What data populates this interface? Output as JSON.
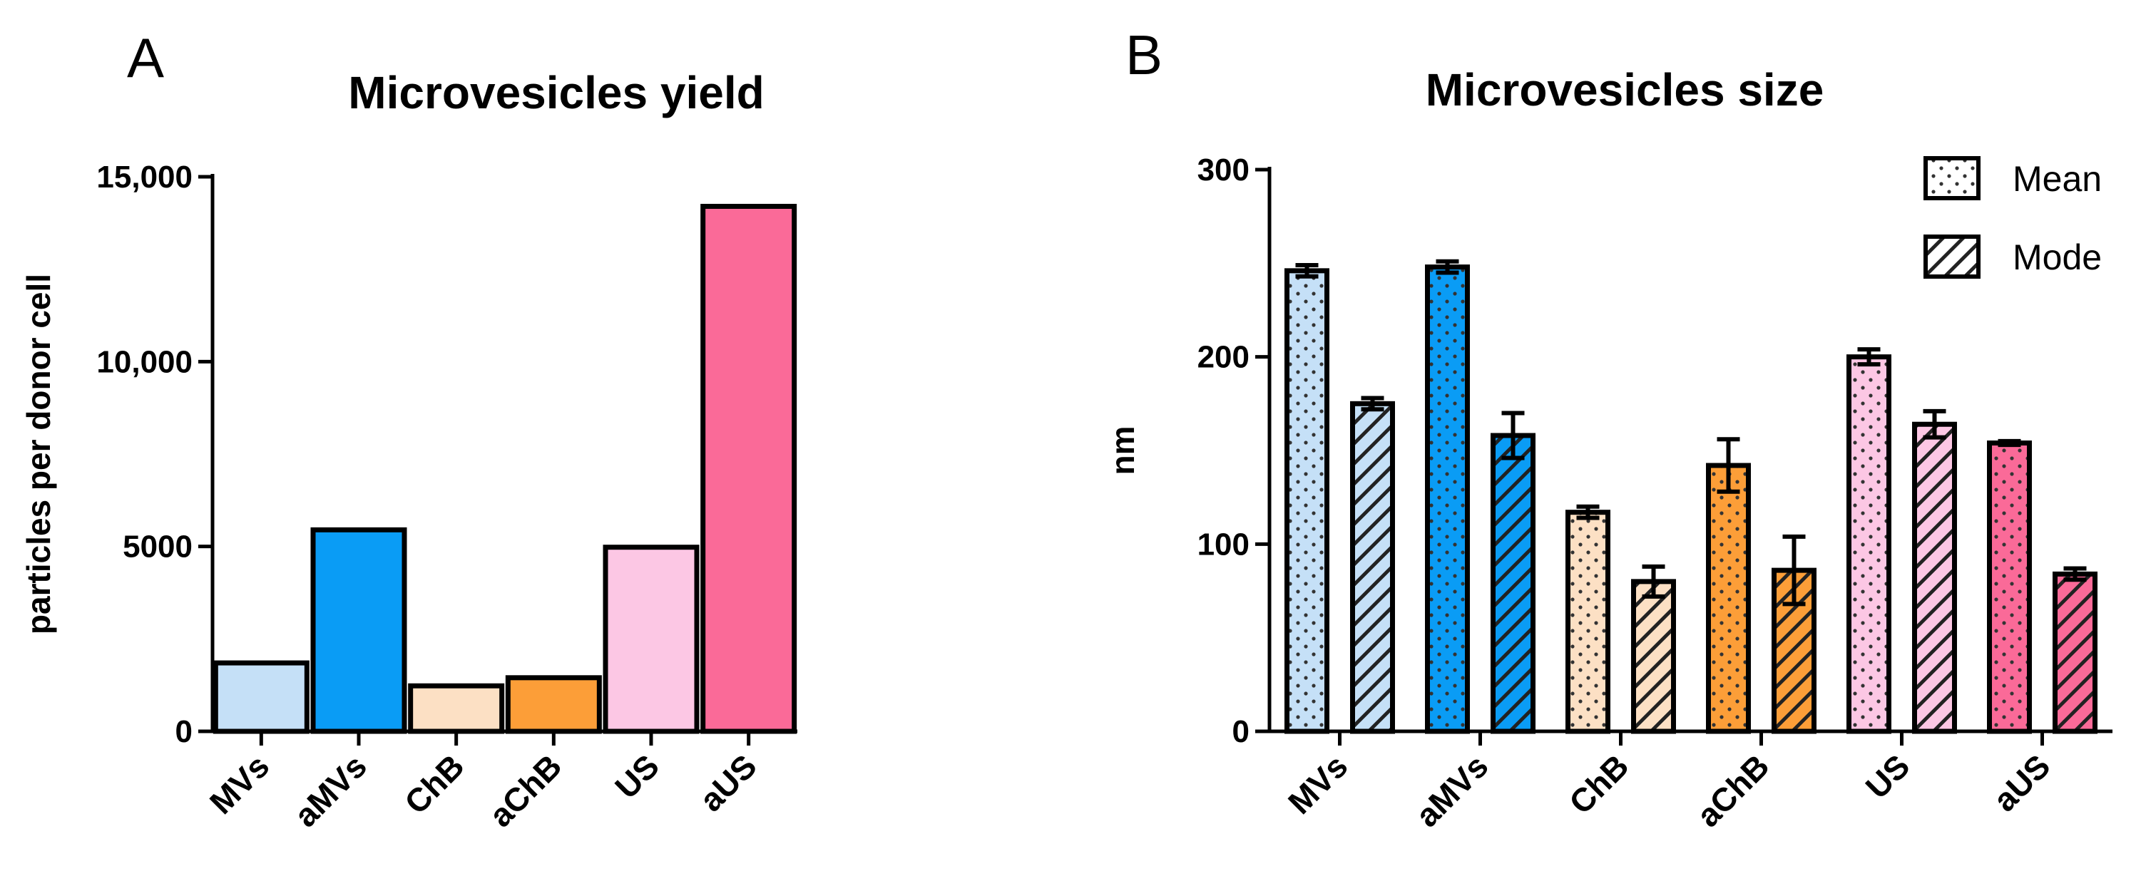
{
  "chart_data": [
    {
      "panel": "A",
      "type": "bar",
      "title": "Microvesicles yield",
      "xlabel": "",
      "ylabel": "particles per donor cell",
      "categories": [
        "MVs",
        "aMVs",
        "ChB",
        "aChB",
        "US",
        "aUS"
      ],
      "values": [
        1850,
        5450,
        1230,
        1450,
        4980,
        14200
      ],
      "colors": [
        "#C5E0F7",
        "#0A9CF5",
        "#FCE0C4",
        "#FC9E38",
        "#FCC7E4",
        "#FA6A98"
      ],
      "ylim": [
        0,
        15000
      ],
      "yticks": [
        {
          "value": 0,
          "label": "0"
        },
        {
          "value": 5000,
          "label": "5000"
        },
        {
          "value": 10000,
          "label": "10,000"
        },
        {
          "value": 15000,
          "label": "15,000"
        }
      ],
      "grid": false
    },
    {
      "panel": "B",
      "type": "bar",
      "title": "Microvesicles size",
      "xlabel": "",
      "ylabel": "nm",
      "categories": [
        "MVs",
        "aMVs",
        "ChB",
        "aChB",
        "US",
        "aUS"
      ],
      "colors": [
        "#C5E0F7",
        "#0A9CF5",
        "#FCE0C4",
        "#FC9E38",
        "#FCC7E4",
        "#FA6A98"
      ],
      "series": [
        {
          "name": "Mean",
          "pattern": "dotted",
          "values": [
            246,
            248,
            117,
            142,
            200,
            154
          ],
          "errors": [
            3,
            3,
            3,
            14,
            4,
            1
          ]
        },
        {
          "name": "Mode",
          "pattern": "hatched",
          "values": [
            175,
            158,
            80,
            86,
            164,
            84
          ],
          "errors": [
            3,
            12,
            8,
            18,
            7,
            3
          ]
        }
      ],
      "ylim": [
        0,
        300
      ],
      "yticks": [
        {
          "value": 0,
          "label": "0"
        },
        {
          "value": 100,
          "label": "100"
        },
        {
          "value": 200,
          "label": "200"
        },
        {
          "value": 300,
          "label": "300"
        }
      ],
      "legend": "top-right",
      "grid": false
    }
  ]
}
